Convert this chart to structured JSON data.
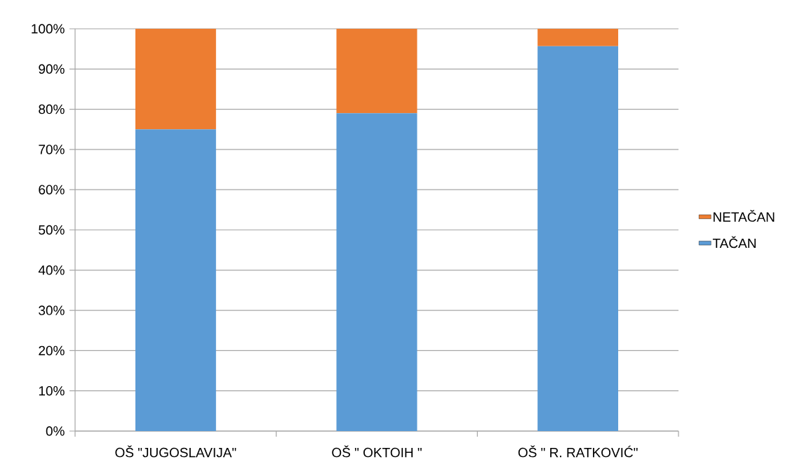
{
  "chart_data": {
    "type": "bar",
    "stacked": true,
    "categories": [
      "OŠ \"JUGOSLAVIJA\"",
      "OŠ \" OKTOIH \"",
      "OŠ \" R. RATKOVIĆ\""
    ],
    "series": [
      {
        "name": "TAČAN",
        "color": "#5b9bd5",
        "values": [
          75,
          79,
          95.7
        ]
      },
      {
        "name": "NETAČAN",
        "color": "#ed7d31",
        "values": [
          25,
          21,
          4.3
        ]
      }
    ],
    "ylim": [
      0,
      100
    ],
    "yticks": [
      {
        "value": 0,
        "label": "0%"
      },
      {
        "value": 10,
        "label": "10%"
      },
      {
        "value": 20,
        "label": "20%"
      },
      {
        "value": 30,
        "label": "30%"
      },
      {
        "value": 40,
        "label": "40%"
      },
      {
        "value": 50,
        "label": "50%"
      },
      {
        "value": 60,
        "label": "60%"
      },
      {
        "value": 70,
        "label": "70%"
      },
      {
        "value": 80,
        "label": "80%"
      },
      {
        "value": 90,
        "label": "90%"
      },
      {
        "value": 100,
        "label": "100%"
      }
    ],
    "grid": "y",
    "legend": "right"
  }
}
